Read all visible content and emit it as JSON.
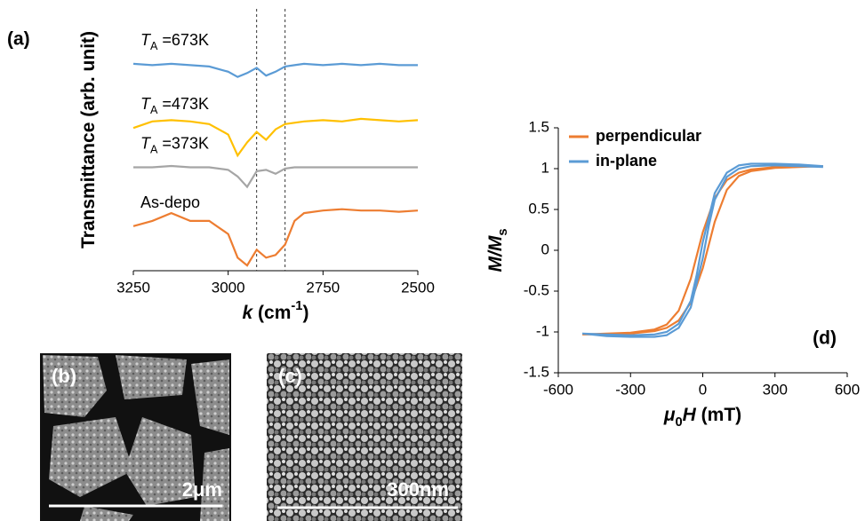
{
  "chart_data": [
    {
      "type": "line",
      "panel_label": "(a)",
      "x_label": [
        {
          "text": "k",
          "style": "italic"
        },
        {
          "text": " (cm"
        },
        {
          "text": "-1",
          "style": "sup"
        },
        {
          "text": ")"
        }
      ],
      "y_label": [
        {
          "text": "Transmittance (arb. unit)"
        }
      ],
      "x": [
        3250,
        3200,
        3150,
        3100,
        3050,
        3000,
        2975,
        2950,
        2925,
        2900,
        2875,
        2850,
        2825,
        2800,
        2750,
        2700,
        2650,
        2600,
        2550,
        2500
      ],
      "xlim": [
        3250,
        2500
      ],
      "xticks": [
        3250,
        3000,
        2750,
        2500
      ],
      "ylim": [
        0,
        10
      ],
      "reference_lines": [
        2925,
        2850
      ],
      "grid": false,
      "series": [
        {
          "label": [
            {
              "text": "T",
              "style": "italic"
            },
            {
              "text": "A",
              "style": "sub"
            },
            {
              "text": " =673K"
            }
          ],
          "color": "#5b9bd5",
          "values": [
            7.9,
            7.85,
            7.9,
            7.85,
            7.8,
            7.6,
            7.4,
            7.55,
            7.75,
            7.45,
            7.6,
            7.8,
            7.85,
            7.9,
            7.85,
            7.9,
            7.85,
            7.9,
            7.85,
            7.85
          ]
        },
        {
          "label": [
            {
              "text": "T",
              "style": "italic"
            },
            {
              "text": "A",
              "style": "sub"
            },
            {
              "text": " =473K"
            }
          ],
          "color": "#ffc000",
          "values": [
            5.45,
            5.7,
            5.75,
            5.7,
            5.6,
            5.2,
            4.4,
            4.9,
            5.3,
            5.0,
            5.4,
            5.6,
            5.65,
            5.7,
            5.75,
            5.7,
            5.8,
            5.75,
            5.7,
            5.75
          ]
        },
        {
          "label": [
            {
              "text": "T",
              "style": "italic"
            },
            {
              "text": "A",
              "style": "sub"
            },
            {
              "text": " =373K"
            }
          ],
          "color": "#a5a5a5",
          "values": [
            3.95,
            3.95,
            4.0,
            3.95,
            3.95,
            3.85,
            3.6,
            3.2,
            3.8,
            3.85,
            3.7,
            3.9,
            3.95,
            3.95,
            3.95,
            3.95,
            3.95,
            3.95,
            3.95,
            3.95
          ]
        },
        {
          "label": [
            {
              "text": "As-depo"
            }
          ],
          "color": "#ed7d31",
          "values": [
            1.7,
            1.9,
            2.2,
            1.9,
            1.9,
            1.4,
            0.5,
            0.2,
            0.8,
            0.5,
            0.6,
            1.0,
            1.9,
            2.2,
            2.3,
            2.35,
            2.3,
            2.3,
            2.25,
            2.3
          ]
        }
      ]
    },
    {
      "type": "line",
      "panel_label": "(d)",
      "x_label": [
        {
          "text": "μ",
          "style": "italic"
        },
        {
          "text": "0",
          "style": "sub"
        },
        {
          "text": "H",
          "style": "italic"
        },
        {
          "text": " (mT)"
        }
      ],
      "y_label": [
        {
          "text": "M/M",
          "style": "italic"
        },
        {
          "text": "s",
          "style": "sub"
        }
      ],
      "xlim": [
        -600,
        600
      ],
      "xticks": [
        -600,
        -300,
        0,
        300,
        600
      ],
      "ylim": [
        -1.5,
        1.5
      ],
      "yticks": [
        1.5,
        1,
        0.5,
        0,
        -0.5,
        -1,
        -1.5
      ],
      "grid": false,
      "legend": "upper left",
      "series": [
        {
          "name": "perpendicular",
          "color": "#ed7d31",
          "x": [
            500,
            400,
            300,
            200,
            150,
            100,
            50,
            0,
            -50,
            -100,
            -150,
            -200,
            -300,
            -400,
            -500,
            -400,
            -300,
            -200,
            -150,
            -100,
            -50,
            0,
            50,
            100,
            150,
            200,
            300,
            400,
            500
          ],
          "values": [
            1.03,
            1.03,
            1.02,
            0.99,
            0.95,
            0.86,
            0.64,
            0.22,
            -0.35,
            -0.74,
            -0.91,
            -0.97,
            -1.01,
            -1.02,
            -1.03,
            -1.03,
            -1.02,
            -0.99,
            -0.95,
            -0.86,
            -0.64,
            -0.22,
            0.35,
            0.74,
            0.91,
            0.97,
            1.01,
            1.02,
            1.03
          ]
        },
        {
          "name": "in-plane",
          "color": "#5b9bd5",
          "x": [
            500,
            400,
            300,
            200,
            150,
            100,
            50,
            25,
            0,
            -25,
            -50,
            -100,
            -150,
            -200,
            -300,
            -400,
            -500,
            -400,
            -300,
            -200,
            -150,
            -100,
            -50,
            -25,
            0,
            25,
            50,
            100,
            150,
            200,
            300,
            400,
            500
          ],
          "values": [
            1.03,
            1.05,
            1.06,
            1.06,
            1.04,
            0.95,
            0.7,
            0.4,
            0.1,
            -0.3,
            -0.62,
            -0.9,
            -1.0,
            -1.03,
            -1.04,
            -1.03,
            -1.02,
            -1.05,
            -1.06,
            -1.06,
            -1.04,
            -0.95,
            -0.7,
            -0.4,
            -0.1,
            0.3,
            0.62,
            0.9,
            1.0,
            1.03,
            1.04,
            1.03,
            1.02
          ]
        }
      ]
    }
  ],
  "images": [
    {
      "panel_label": "(b)",
      "scale_bar": "2μm"
    },
    {
      "panel_label": "(c)",
      "scale_bar": "300nm"
    }
  ]
}
